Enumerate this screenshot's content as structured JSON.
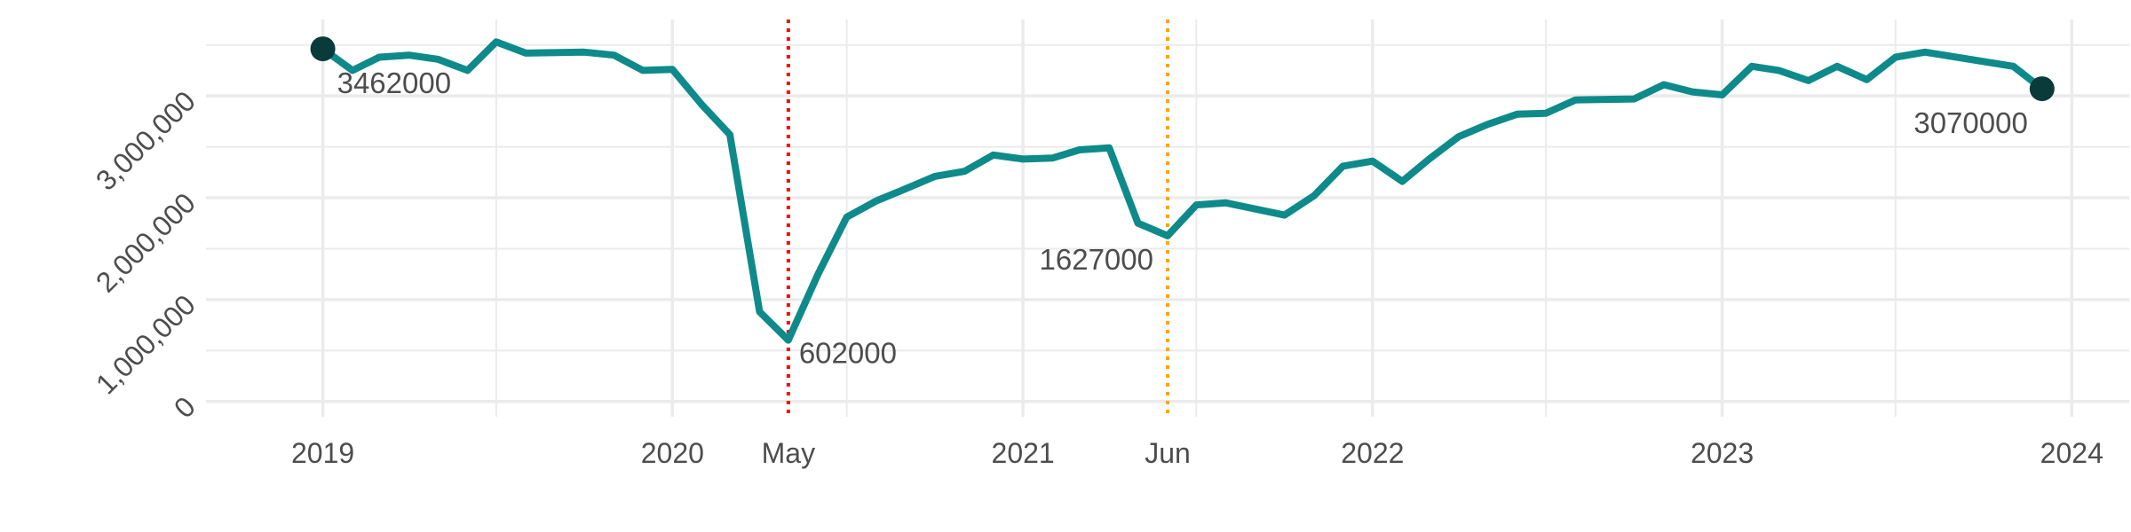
{
  "chart_data": {
    "type": "line",
    "title": "",
    "xlabel": "",
    "ylabel": "",
    "ylim": [
      -150000,
      3750000
    ],
    "xlim": [
      "2018-09-01",
      "2024-03-01"
    ],
    "y_ticks": [
      {
        "value": 0,
        "label": "0"
      },
      {
        "value": 1000000,
        "label": "1,000,000"
      },
      {
        "value": 2000000,
        "label": "2,000,000"
      },
      {
        "value": 3000000,
        "label": "3,000,000"
      }
    ],
    "x_ticks": [
      {
        "date": "2019-01-01",
        "label": "2019"
      },
      {
        "date": "2020-01-01",
        "label": "2020"
      },
      {
        "date": "2021-01-01",
        "label": "2021"
      },
      {
        "date": "2022-01-01",
        "label": "2022"
      },
      {
        "date": "2023-01-01",
        "label": "2023"
      },
      {
        "date": "2024-01-01",
        "label": "2024"
      }
    ],
    "grid": true,
    "line_color": "#0e8a8a",
    "endpoint_color": "#0a3b3b",
    "series": [
      {
        "points": [
          [
            "2019-01-01",
            3462000
          ],
          [
            "2019-02-01",
            3250000
          ],
          [
            "2019-03-01",
            3380000
          ],
          [
            "2019-04-01",
            3400000
          ],
          [
            "2019-05-01",
            3360000
          ],
          [
            "2019-06-01",
            3250000
          ],
          [
            "2019-07-01",
            3530000
          ],
          [
            "2019-08-01",
            3420000
          ],
          [
            "2019-10-01",
            3430000
          ],
          [
            "2019-11-01",
            3400000
          ],
          [
            "2019-12-01",
            3250000
          ],
          [
            "2020-01-01",
            3260000
          ],
          [
            "2020-02-01",
            2910000
          ],
          [
            "2020-03-01",
            2620000
          ],
          [
            "2020-04-01",
            880000
          ],
          [
            "2020-05-01",
            602000
          ],
          [
            "2020-06-01",
            1250000
          ],
          [
            "2020-07-01",
            1810000
          ],
          [
            "2020-08-01",
            1970000
          ],
          [
            "2020-09-01",
            2090000
          ],
          [
            "2020-10-01",
            2210000
          ],
          [
            "2020-11-01",
            2260000
          ],
          [
            "2020-12-01",
            2420000
          ],
          [
            "2021-01-01",
            2380000
          ],
          [
            "2021-02-01",
            2390000
          ],
          [
            "2021-03-01",
            2470000
          ],
          [
            "2021-04-01",
            2490000
          ],
          [
            "2021-05-01",
            1750000
          ],
          [
            "2021-06-01",
            1627000
          ],
          [
            "2021-07-01",
            1930000
          ],
          [
            "2021-08-01",
            1950000
          ],
          [
            "2021-10-01",
            1830000
          ],
          [
            "2021-11-01",
            2020000
          ],
          [
            "2021-12-01",
            2310000
          ],
          [
            "2022-01-01",
            2360000
          ],
          [
            "2022-02-01",
            2160000
          ],
          [
            "2022-03-01",
            2380000
          ],
          [
            "2022-04-01",
            2600000
          ],
          [
            "2022-05-01",
            2720000
          ],
          [
            "2022-06-01",
            2820000
          ],
          [
            "2022-07-01",
            2830000
          ],
          [
            "2022-08-01",
            2960000
          ],
          [
            "2022-10-01",
            2970000
          ],
          [
            "2022-11-01",
            3110000
          ],
          [
            "2022-12-01",
            3040000
          ],
          [
            "2023-01-01",
            3010000
          ],
          [
            "2023-02-01",
            3290000
          ],
          [
            "2023-03-01",
            3250000
          ],
          [
            "2023-04-01",
            3150000
          ],
          [
            "2023-05-01",
            3290000
          ],
          [
            "2023-06-01",
            3160000
          ],
          [
            "2023-07-01",
            3380000
          ],
          [
            "2023-08-01",
            3430000
          ],
          [
            "2023-11-01",
            3290000
          ],
          [
            "2023-12-01",
            3070000
          ]
        ]
      }
    ],
    "highlight_points": [
      {
        "date": "2019-01-01",
        "value": 3462000
      },
      {
        "date": "2023-12-01",
        "value": 3070000
      }
    ],
    "annotations": [
      {
        "date": "2019-01-01",
        "value": 3462000,
        "text": "3462000",
        "position": "below-right"
      },
      {
        "date": "2020-05-01",
        "value": 602000,
        "text": "602000",
        "position": "right"
      },
      {
        "date": "2021-06-01",
        "value": 1627000,
        "text": "1627000",
        "position": "left"
      },
      {
        "date": "2023-12-01",
        "value": 3070000,
        "text": "3070000",
        "position": "below-left"
      }
    ],
    "vlines": [
      {
        "date": "2020-05-01",
        "label": "May",
        "color": "#ff0000",
        "style": "dotted"
      },
      {
        "date": "2021-06-01",
        "label": "Jun",
        "color": "#ffa500",
        "style": "dotted"
      }
    ]
  }
}
